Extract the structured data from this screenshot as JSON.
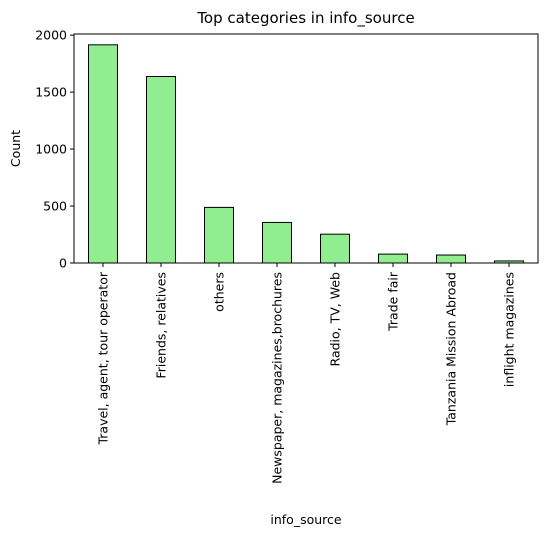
{
  "chart_data": {
    "type": "bar",
    "title": "Top categories in info_source",
    "xlabel": "info_source",
    "ylabel": "Count",
    "categories": [
      "Travel, agent, tour operator",
      "Friends, relatives",
      "others",
      "Newspaper, magazines,brochures",
      "Radio, TV, Web",
      "Trade fair",
      "Tanzania Mission Abroad",
      "inflight magazines"
    ],
    "values": [
      1915,
      1637,
      488,
      356,
      253,
      78,
      70,
      18
    ],
    "ylim": [
      0,
      2010
    ],
    "yticks": [
      0,
      500,
      1000,
      1500,
      2000
    ],
    "grid": false,
    "legend": "none",
    "bar_color": "#90ee90",
    "edge_color": "#000000"
  }
}
